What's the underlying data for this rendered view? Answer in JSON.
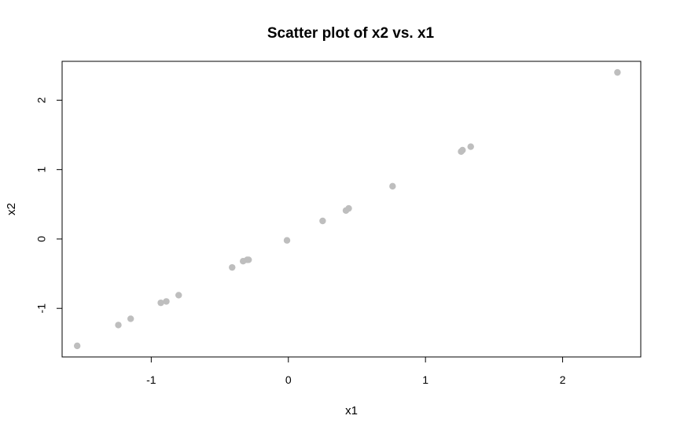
{
  "chart_data": {
    "type": "scatter",
    "title": "Scatter plot of x2 vs. x1",
    "xlabel": "x1",
    "ylabel": "x2",
    "xlim": [
      -1.65,
      2.57
    ],
    "ylim": [
      -1.7,
      2.56
    ],
    "x_ticks": [
      -1,
      0,
      1,
      2
    ],
    "y_ticks": [
      -1,
      0,
      1,
      2
    ],
    "grid": false,
    "point_color": "#bebebe",
    "points": [
      {
        "x": -1.54,
        "y": -1.54
      },
      {
        "x": -1.24,
        "y": -1.24
      },
      {
        "x": -1.15,
        "y": -1.15
      },
      {
        "x": -0.93,
        "y": -0.92
      },
      {
        "x": -0.89,
        "y": -0.9
      },
      {
        "x": -0.8,
        "y": -0.81
      },
      {
        "x": -0.41,
        "y": -0.41
      },
      {
        "x": -0.33,
        "y": -0.32
      },
      {
        "x": -0.3,
        "y": -0.3
      },
      {
        "x": -0.29,
        "y": -0.3
      },
      {
        "x": -0.01,
        "y": -0.02
      },
      {
        "x": 0.25,
        "y": 0.26
      },
      {
        "x": 0.42,
        "y": 0.41
      },
      {
        "x": 0.44,
        "y": 0.44
      },
      {
        "x": 0.76,
        "y": 0.76
      },
      {
        "x": 1.26,
        "y": 1.26
      },
      {
        "x": 1.27,
        "y": 1.28
      },
      {
        "x": 1.33,
        "y": 1.33
      },
      {
        "x": 2.4,
        "y": 2.4
      }
    ]
  }
}
